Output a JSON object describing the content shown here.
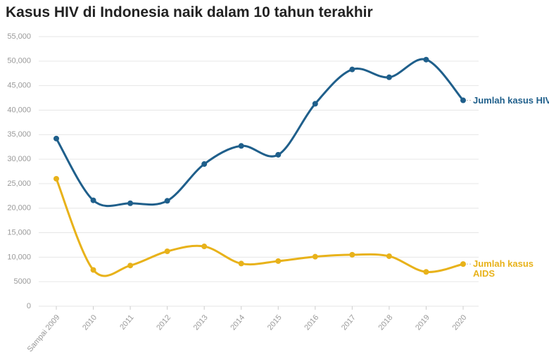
{
  "chart_data": {
    "type": "line",
    "title": "Kasus HIV di Indonesia naik dalam 10 tahun terakhir",
    "categories": [
      "Sampai 2009",
      "2010",
      "2011",
      "2012",
      "2013",
      "2014",
      "2015",
      "2016",
      "2017",
      "2018",
      "2019",
      "2020"
    ],
    "series": [
      {
        "name": "Jumlah kasus HIV",
        "color": "#1f5f8b",
        "values": [
          34200,
          21600,
          21000,
          21500,
          29000,
          32700,
          30900,
          41300,
          48300,
          46700,
          50300,
          42000
        ]
      },
      {
        "name": "Jumlah kasus AIDS",
        "color": "#e8b21a",
        "values": [
          26000,
          7400,
          8300,
          11200,
          12200,
          8700,
          9200,
          10100,
          10500,
          10200,
          7000,
          8600
        ]
      }
    ],
    "ylim": [
      0,
      55000
    ],
    "yticks": [
      0,
      5000,
      {
        "value": 10000,
        "label": "10,000"
      },
      {
        "value": 15000,
        "label": "15,000"
      },
      {
        "value": 20000,
        "label": "20,000"
      },
      {
        "value": 25000,
        "label": "25,000"
      },
      {
        "value": 30000,
        "label": "30,000"
      },
      {
        "value": 35000,
        "label": "35,000"
      },
      {
        "value": 40000,
        "label": "40,000"
      },
      {
        "value": 45000,
        "label": "45,000"
      },
      {
        "value": 50000,
        "label": "50,000"
      },
      {
        "value": 55000,
        "label": "55,000"
      }
    ],
    "grid": true
  }
}
